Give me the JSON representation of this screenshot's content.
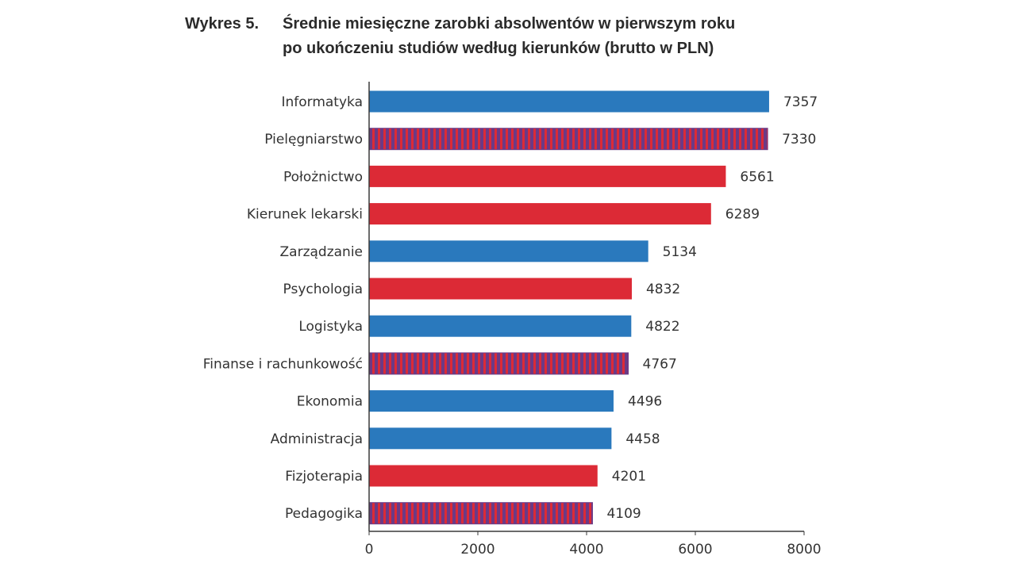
{
  "title": {
    "prefix": "Wykres 5.",
    "line1": "Średnie miesięczne zarobki absolwentów w pierwszym roku",
    "line2": "po ukończeniu studiów według kierunków (brutto w PLN)"
  },
  "colors": {
    "blue": "#2a79bd",
    "red": "#dc2a36",
    "stripe_dark": "#6b3a86"
  },
  "chart_data": {
    "type": "bar",
    "orientation": "horizontal",
    "title": "Średnie miesięczne zarobki absolwentów w pierwszym roku po ukończeniu studiów według kierunków (brutto w PLN)",
    "categories": [
      "Informatyka",
      "Pielęgniarstwo",
      "Położnictwo",
      "Kierunek lekarski",
      "Zarządzanie",
      "Psychologia",
      "Logistyka",
      "Finanse i rachunkowość",
      "Ekonomia",
      "Administracja",
      "Fizjoterapia",
      "Pedagogika"
    ],
    "values": [
      7357,
      7330,
      6561,
      6289,
      5134,
      4832,
      4822,
      4767,
      4496,
      4458,
      4201,
      4109
    ],
    "data_labels": [
      "7357",
      "7330",
      "6561",
      "6289",
      "5134",
      "4832",
      "4822",
      "4767",
      "4496",
      "4458",
      "4201",
      "4109"
    ],
    "bar_styles": [
      "blue",
      "striped",
      "red",
      "red",
      "blue",
      "red",
      "blue",
      "striped",
      "blue",
      "blue",
      "red",
      "striped"
    ],
    "xlim": [
      0,
      8000
    ],
    "xticks": [
      0,
      2000,
      4000,
      6000,
      8000
    ],
    "xtick_labels": [
      "0",
      "2000",
      "4000",
      "6000",
      "8000"
    ],
    "xlabel": "",
    "ylabel": "",
    "grid": false,
    "legend": "none"
  }
}
